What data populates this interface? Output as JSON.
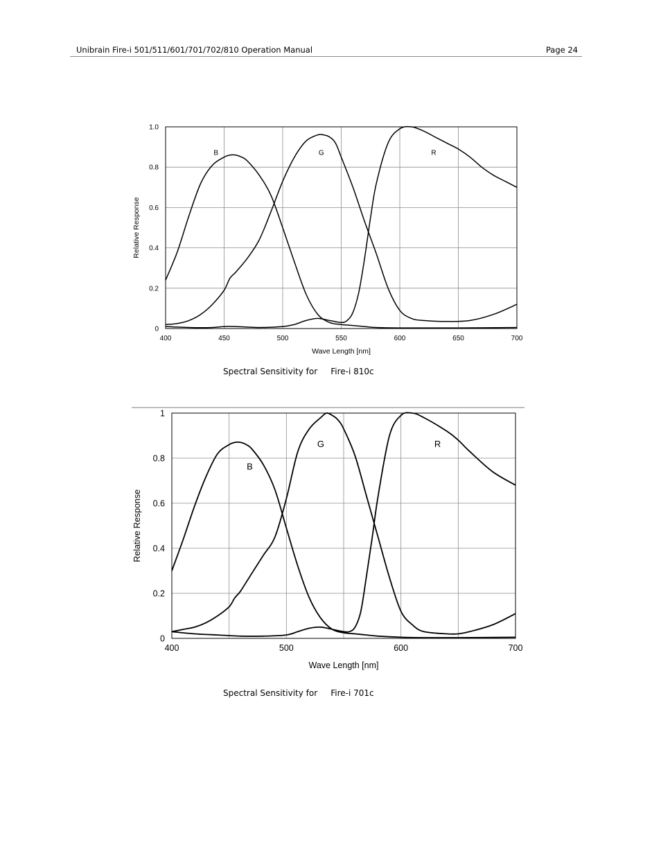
{
  "header": {
    "title": "Unibrain Fire-i 501/511/601/701/702/810 Operation Manual",
    "page": "Page 24"
  },
  "captions": [
    "Spectral Sensitivity for     Fire-i 810c",
    "Spectral Sensitivity for     Fire-i 701c"
  ],
  "chart_data": [
    {
      "type": "line",
      "title": "",
      "xlabel": "Wave Length [nm]",
      "ylabel": "Relative Response",
      "xlim": [
        400,
        700
      ],
      "ylim": [
        0,
        1.0
      ],
      "xticks": [
        400,
        450,
        500,
        550,
        600,
        650,
        700
      ],
      "xtick_labels": [
        "400",
        "450",
        "500",
        "550",
        "600",
        "650",
        "700"
      ],
      "yticks": [
        0,
        0.2,
        0.4,
        0.6,
        0.8,
        1.0
      ],
      "ytick_labels": [
        "0",
        "0.2",
        "0.4",
        "0.6",
        "0.8",
        "1.0"
      ],
      "grid": true,
      "series_labels": [
        {
          "text": "B",
          "x": 443,
          "y": 0.86
        },
        {
          "text": "G",
          "x": 533,
          "y": 0.86
        },
        {
          "text": "R",
          "x": 629,
          "y": 0.86
        }
      ],
      "series": [
        {
          "name": "B",
          "x": [
            400,
            410,
            420,
            430,
            440,
            450,
            455,
            460,
            465,
            470,
            480,
            490,
            500,
            510,
            520,
            530,
            540,
            550,
            560,
            570,
            580,
            600,
            620,
            650,
            700
          ],
          "y": [
            0.24,
            0.38,
            0.56,
            0.72,
            0.81,
            0.85,
            0.86,
            0.86,
            0.85,
            0.83,
            0.76,
            0.66,
            0.5,
            0.33,
            0.17,
            0.07,
            0.03,
            0.02,
            0.015,
            0.01,
            0.005,
            0.003,
            0.003,
            0.003,
            0.005
          ]
        },
        {
          "name": "G",
          "x": [
            400,
            410,
            420,
            430,
            440,
            450,
            455,
            460,
            470,
            480,
            490,
            500,
            510,
            520,
            530,
            535,
            540,
            545,
            550,
            560,
            570,
            580,
            590,
            600,
            610,
            620,
            640,
            660,
            680,
            700
          ],
          "y": [
            0.02,
            0.025,
            0.04,
            0.07,
            0.12,
            0.19,
            0.25,
            0.28,
            0.35,
            0.44,
            0.58,
            0.73,
            0.85,
            0.93,
            0.96,
            0.96,
            0.95,
            0.92,
            0.85,
            0.7,
            0.53,
            0.37,
            0.2,
            0.09,
            0.05,
            0.04,
            0.035,
            0.04,
            0.07,
            0.12
          ]
        },
        {
          "name": "R",
          "x": [
            400,
            420,
            440,
            450,
            460,
            480,
            500,
            510,
            520,
            530,
            540,
            550,
            555,
            560,
            565,
            570,
            575,
            580,
            590,
            600,
            610,
            620,
            630,
            640,
            650,
            660,
            670,
            680,
            690,
            700
          ],
          "y": [
            0.01,
            0.005,
            0.005,
            0.01,
            0.01,
            0.005,
            0.01,
            0.02,
            0.04,
            0.05,
            0.04,
            0.03,
            0.04,
            0.08,
            0.18,
            0.35,
            0.55,
            0.72,
            0.92,
            0.99,
            1.0,
            0.98,
            0.95,
            0.92,
            0.89,
            0.85,
            0.8,
            0.76,
            0.73,
            0.7
          ]
        }
      ]
    },
    {
      "type": "line",
      "title": "",
      "xlabel": "Wave Length [nm]",
      "ylabel": "Relative Response",
      "xlim": [
        400,
        700
      ],
      "ylim": [
        0,
        1
      ],
      "xticks": [
        400,
        500,
        600,
        700
      ],
      "xtick_labels": [
        "400",
        "500",
        "600",
        "700"
      ],
      "grid_x": [
        400,
        450,
        500,
        550,
        600,
        650,
        700
      ],
      "yticks": [
        0,
        0.2,
        0.4,
        0.6,
        0.8,
        1
      ],
      "ytick_labels": [
        "0",
        "0.2",
        "0.4",
        "0.6",
        "0.8",
        "1"
      ],
      "grid": true,
      "series_labels": [
        {
          "text": "B",
          "x": 468,
          "y": 0.75
        },
        {
          "text": "G",
          "x": 530,
          "y": 0.85
        },
        {
          "text": "R",
          "x": 632,
          "y": 0.85
        }
      ],
      "series": [
        {
          "name": "B",
          "x": [
            400,
            410,
            420,
            430,
            440,
            450,
            455,
            460,
            465,
            470,
            480,
            490,
            500,
            510,
            520,
            530,
            540,
            550,
            560,
            570,
            580,
            600,
            620,
            650,
            700
          ],
          "y": [
            0.3,
            0.44,
            0.59,
            0.72,
            0.82,
            0.86,
            0.87,
            0.87,
            0.86,
            0.84,
            0.77,
            0.66,
            0.49,
            0.32,
            0.18,
            0.09,
            0.04,
            0.025,
            0.02,
            0.015,
            0.01,
            0.005,
            0.003,
            0.003,
            0.005
          ]
        },
        {
          "name": "G",
          "x": [
            400,
            410,
            420,
            430,
            440,
            450,
            455,
            460,
            470,
            480,
            490,
            500,
            510,
            520,
            530,
            535,
            540,
            545,
            550,
            560,
            570,
            580,
            590,
            600,
            610,
            620,
            640,
            650,
            660,
            680,
            700
          ],
          "y": [
            0.03,
            0.04,
            0.05,
            0.07,
            0.1,
            0.14,
            0.18,
            0.21,
            0.29,
            0.37,
            0.45,
            0.62,
            0.83,
            0.93,
            0.98,
            1.0,
            0.99,
            0.97,
            0.93,
            0.81,
            0.63,
            0.45,
            0.27,
            0.12,
            0.06,
            0.03,
            0.02,
            0.02,
            0.03,
            0.06,
            0.11
          ]
        },
        {
          "name": "R",
          "x": [
            400,
            420,
            440,
            460,
            480,
            500,
            510,
            520,
            530,
            540,
            550,
            555,
            560,
            565,
            570,
            575,
            580,
            590,
            600,
            610,
            620,
            640,
            650,
            660,
            680,
            700
          ],
          "y": [
            0.03,
            0.02,
            0.015,
            0.01,
            0.01,
            0.015,
            0.03,
            0.045,
            0.05,
            0.04,
            0.03,
            0.03,
            0.05,
            0.12,
            0.28,
            0.45,
            0.63,
            0.9,
            0.99,
            1.0,
            0.98,
            0.92,
            0.88,
            0.83,
            0.74,
            0.68
          ]
        }
      ]
    }
  ]
}
